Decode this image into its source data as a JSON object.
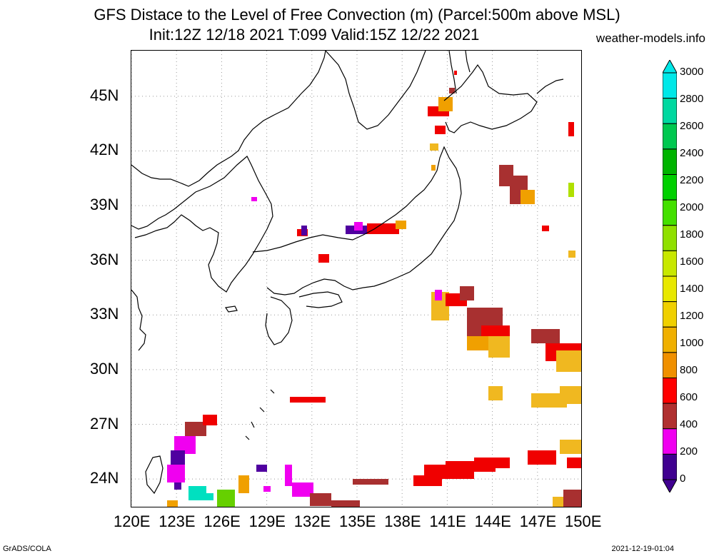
{
  "header": {
    "title_line1": "GFS Distace to the Level of Free Convection (m) (Parcel:500m above MSL)",
    "title_line2": "Init:12Z 12/18 2021 T:099 Valid:15Z 12/22 2021",
    "brand": "weather-models.info"
  },
  "axes": {
    "lat_labels": [
      "45N",
      "42N",
      "39N",
      "36N",
      "33N",
      "30N",
      "27N",
      "24N"
    ],
    "lat_values": [
      45,
      42,
      39,
      36,
      33,
      30,
      27,
      24
    ],
    "lon_labels": [
      "120E",
      "123E",
      "126E",
      "129E",
      "132E",
      "135E",
      "138E",
      "141E",
      "144E",
      "147E",
      "150E"
    ],
    "lon_values": [
      120,
      123,
      126,
      129,
      132,
      135,
      138,
      141,
      144,
      147,
      150
    ],
    "lat_range": [
      22.4,
      47.5
    ],
    "lon_range": [
      120,
      150
    ]
  },
  "colorbar": {
    "labels": [
      "3000",
      "2800",
      "2600",
      "2400",
      "2200",
      "2000",
      "1800",
      "1600",
      "1400",
      "1200",
      "1000",
      "800",
      "600",
      "400",
      "200",
      "0"
    ],
    "colors": [
      "#00e8e8",
      "#00d8a0",
      "#00c850",
      "#00b400",
      "#00d000",
      "#44e000",
      "#90e000",
      "#c8e800",
      "#e8e800",
      "#f0d000",
      "#f0b000",
      "#f09000",
      "#ff0000",
      "#b03030",
      "#f000f0",
      "#400090"
    ]
  },
  "field_colors": {
    "purple": "#5000a0",
    "magenta": "#f000f0",
    "darkred": "#a83030",
    "red": "#f00000",
    "orange": "#f0a000",
    "lightorange": "#f0b820",
    "green": "#66d000",
    "cyan": "#00e0c0",
    "yellowgreen": "#b0e000"
  },
  "footer": {
    "left": "GrADS/COLA",
    "right": "2021-12-19-01:04"
  }
}
